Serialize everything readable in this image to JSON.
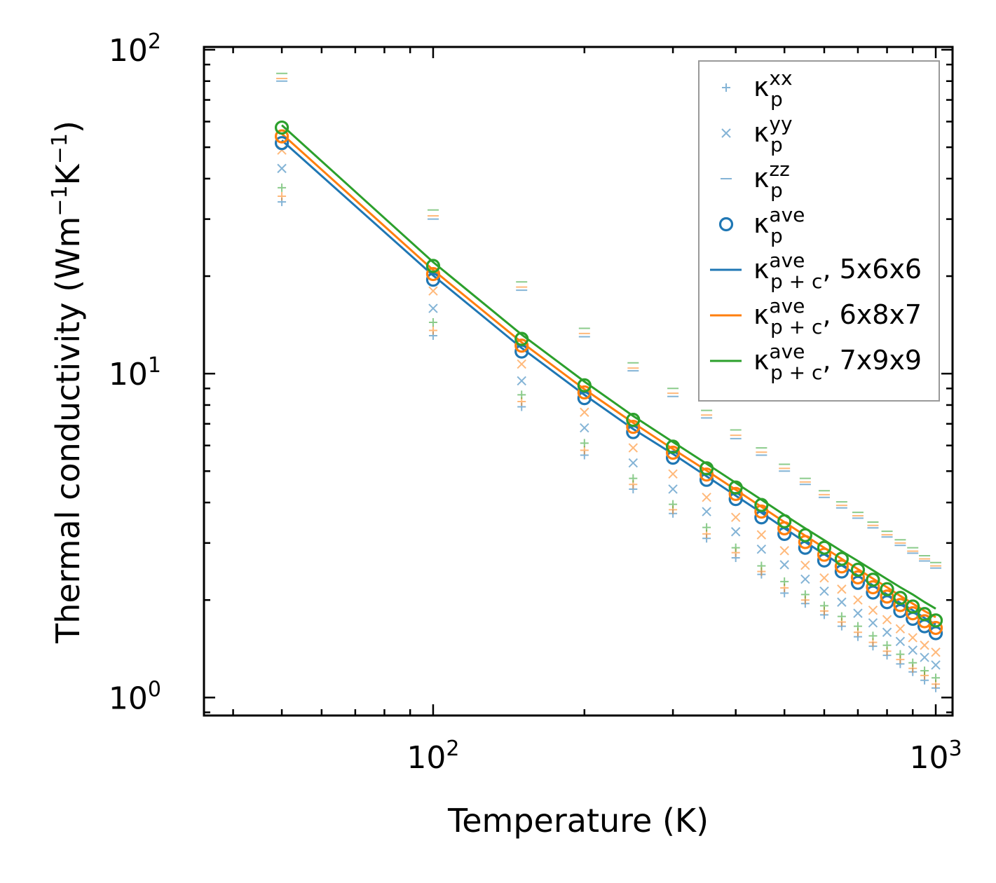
{
  "chart_data": {
    "type": "scatter",
    "xscale": "log",
    "yscale": "log",
    "xlabel": "Temperature (K)",
    "ylabel": {
      "main": "Thermal conductivity (Wm",
      "sup1": "−1",
      "mid": "K",
      "sup2": "−1",
      "end": ")"
    },
    "xlim": [
      35,
      1080
    ],
    "ylim": [
      0.88,
      102
    ],
    "x_ticks": [
      {
        "base": "10",
        "exp": "2",
        "value": 100
      },
      {
        "base": "10",
        "exp": "3",
        "value": 1000
      }
    ],
    "y_ticks": [
      {
        "base": "10",
        "exp": "0",
        "value": 1
      },
      {
        "base": "10",
        "exp": "1",
        "value": 10
      },
      {
        "base": "10",
        "exp": "2",
        "value": 100
      }
    ],
    "x": [
      50,
      100,
      150,
      200,
      250,
      300,
      350,
      400,
      450,
      500,
      550,
      600,
      650,
      700,
      750,
      800,
      850,
      900,
      950,
      1000
    ],
    "colors": {
      "mesh1": "#1f77b4",
      "mesh2": "#ff7f0e",
      "mesh3": "#2ca02c"
    },
    "legend": {
      "position": "upper right",
      "entries": [
        {
          "marker": "plus",
          "base": "κ",
          "sub": "p",
          "sup": "xx",
          "suffix": ""
        },
        {
          "marker": "x",
          "base": "κ",
          "sub": "p",
          "sup": "yy",
          "suffix": ""
        },
        {
          "marker": "dash",
          "base": "κ",
          "sub": "p",
          "sup": "zz",
          "suffix": ""
        },
        {
          "marker": "circle",
          "base": "κ",
          "sub": "p",
          "sup": "ave",
          "suffix": ""
        },
        {
          "marker": "line",
          "color": "#1f77b4",
          "base": "κ",
          "sub": "p + c",
          "sup": "ave",
          "suffix": ", 5x6x6"
        },
        {
          "marker": "line",
          "color": "#ff7f0e",
          "base": "κ",
          "sub": "p + c",
          "sup": "ave",
          "suffix": ", 6x8x7"
        },
        {
          "marker": "line",
          "color": "#2ca02c",
          "base": "κ",
          "sub": "p + c",
          "sup": "ave",
          "suffix": ", 7x9x9"
        }
      ]
    },
    "series": [
      {
        "name": "κ_p^xx, 5x6x6",
        "marker": "plus",
        "color": "#1f77b4",
        "values": [
          33.9,
          13.1,
          7.9,
          5.6,
          4.4,
          3.7,
          3.1,
          2.7,
          2.4,
          2.1,
          1.95,
          1.8,
          1.66,
          1.54,
          1.44,
          1.35,
          1.27,
          1.2,
          1.13,
          1.07
        ]
      },
      {
        "name": "κ_p^xx, 6x8x7",
        "marker": "plus",
        "color": "#ff7f0e",
        "values": [
          35.3,
          13.6,
          8.2,
          5.8,
          4.55,
          3.8,
          3.2,
          2.8,
          2.45,
          2.18,
          2.0,
          1.85,
          1.71,
          1.59,
          1.48,
          1.39,
          1.31,
          1.23,
          1.17,
          1.1
        ]
      },
      {
        "name": "κ_p^xx, 7x9x9",
        "marker": "plus",
        "color": "#2ca02c",
        "values": [
          37.5,
          14.4,
          8.6,
          6.1,
          4.75,
          3.95,
          3.35,
          2.9,
          2.55,
          2.28,
          2.08,
          1.92,
          1.78,
          1.66,
          1.55,
          1.45,
          1.36,
          1.28,
          1.21,
          1.15
        ]
      },
      {
        "name": "κ_p^yy, 5x6x6",
        "marker": "x",
        "color": "#1f77b4",
        "values": [
          43.0,
          15.9,
          9.5,
          6.8,
          5.3,
          4.4,
          3.75,
          3.25,
          2.87,
          2.57,
          2.32,
          2.13,
          1.97,
          1.82,
          1.7,
          1.59,
          1.49,
          1.4,
          1.33,
          1.26
        ]
      },
      {
        "name": "κ_p^yy, 6x8x7",
        "marker": "x",
        "color": "#ff7f0e",
        "values": [
          49.0,
          18.0,
          10.7,
          7.6,
          5.9,
          4.9,
          4.15,
          3.6,
          3.18,
          2.84,
          2.56,
          2.34,
          2.16,
          2.0,
          1.86,
          1.74,
          1.63,
          1.53,
          1.45,
          1.38
        ]
      },
      {
        "name": "κ_p^zz, 5x6x6",
        "marker": "dash",
        "color": "#1f77b4",
        "values": [
          80.0,
          30.0,
          18.1,
          13.0,
          10.2,
          8.5,
          7.3,
          6.3,
          5.6,
          5.0,
          4.55,
          4.15,
          3.85,
          3.58,
          3.34,
          3.13,
          2.95,
          2.79,
          2.64,
          2.51
        ]
      },
      {
        "name": "κ_p^zz, 6x8x7",
        "marker": "dash",
        "color": "#ff7f0e",
        "values": [
          81.5,
          30.7,
          18.5,
          13.3,
          10.4,
          8.7,
          7.45,
          6.45,
          5.72,
          5.1,
          4.63,
          4.23,
          3.92,
          3.64,
          3.4,
          3.18,
          3.0,
          2.83,
          2.68,
          2.55
        ]
      },
      {
        "name": "κ_p^zz, 7x9x9",
        "marker": "dash",
        "color": "#2ca02c",
        "values": [
          84.5,
          32.0,
          19.2,
          13.8,
          10.8,
          9.0,
          7.7,
          6.7,
          5.9,
          5.25,
          4.75,
          4.35,
          4.02,
          3.73,
          3.48,
          3.26,
          3.07,
          2.9,
          2.74,
          2.61
        ]
      },
      {
        "name": "κ_p^ave, 5x6x6",
        "marker": "circle",
        "color": "#1f77b4",
        "values": [
          51.5,
          19.5,
          11.7,
          8.4,
          6.6,
          5.5,
          4.7,
          4.1,
          3.6,
          3.2,
          2.9,
          2.65,
          2.45,
          2.26,
          2.11,
          1.97,
          1.85,
          1.75,
          1.66,
          1.58
        ]
      },
      {
        "name": "κ_p^ave, 6x8x7",
        "marker": "circle",
        "color": "#ff7f0e",
        "values": [
          54.0,
          20.3,
          12.2,
          8.75,
          6.85,
          5.7,
          4.88,
          4.25,
          3.75,
          3.33,
          3.02,
          2.76,
          2.54,
          2.35,
          2.19,
          2.05,
          1.93,
          1.82,
          1.72,
          1.64
        ]
      },
      {
        "name": "κ_p^ave, 7x9x9",
        "marker": "circle",
        "color": "#2ca02c",
        "values": [
          57.5,
          21.5,
          12.8,
          9.2,
          7.2,
          5.95,
          5.1,
          4.45,
          3.93,
          3.5,
          3.17,
          2.9,
          2.68,
          2.48,
          2.31,
          2.16,
          2.03,
          1.91,
          1.81,
          1.73
        ]
      },
      {
        "name": "κ_p+c^ave, 5x6x6",
        "marker": "line",
        "color": "#1f77b4",
        "values": [
          52.5,
          20.1,
          12.0,
          8.6,
          6.75,
          5.65,
          4.82,
          4.2,
          3.72,
          3.33,
          3.02,
          2.77,
          2.56,
          2.38,
          2.22,
          2.08,
          1.96,
          1.86,
          1.76,
          1.68
        ]
      },
      {
        "name": "κ_p+c^ave, 6x8x7",
        "marker": "line",
        "color": "#ff7f0e",
        "values": [
          55.0,
          20.9,
          12.5,
          8.95,
          7.05,
          5.85,
          5.02,
          4.38,
          3.88,
          3.48,
          3.16,
          2.9,
          2.68,
          2.49,
          2.33,
          2.19,
          2.06,
          1.95,
          1.85,
          1.77
        ]
      },
      {
        "name": "κ_p+c^ave, 7x9x9",
        "marker": "line",
        "color": "#2ca02c",
        "values": [
          58.5,
          22.1,
          13.2,
          9.45,
          7.4,
          6.15,
          5.27,
          4.6,
          4.08,
          3.66,
          3.33,
          3.06,
          2.83,
          2.64,
          2.47,
          2.32,
          2.19,
          2.08,
          1.97,
          1.88
        ]
      }
    ]
  }
}
